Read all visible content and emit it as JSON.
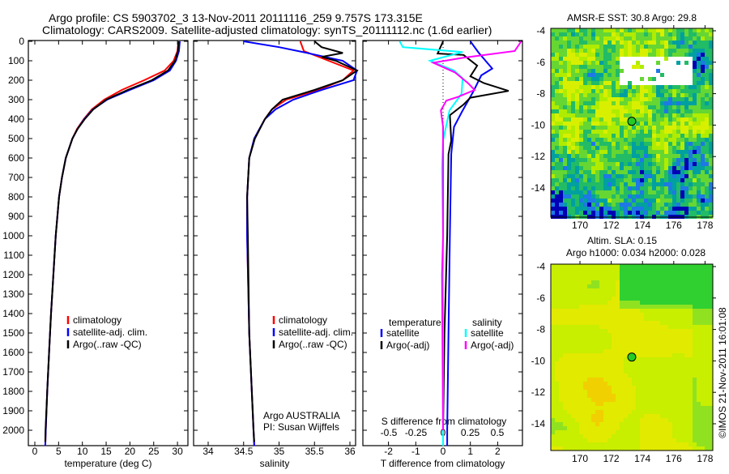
{
  "title": {
    "line1": "Argo profile: CS 5903702_3 13-Nov-2011 20111116_259 9.757S 173.315E",
    "line2": "Climatology: CARS2009. Satellite-adjusted climatology: synTS_20111112.nc (1.6d earlier)"
  },
  "colors": {
    "climatology": "#ff0000",
    "satellite": "#0000ff",
    "argo": "#000000",
    "s_satellite": "#00ffff",
    "s_argo": "#ff00ff"
  },
  "chart_data": [
    {
      "type": "line",
      "xlabel": "temperature (deg C)",
      "ylabel": "depth",
      "xlim": [
        -1.5,
        31.5
      ],
      "ylim": [
        2080,
        0
      ],
      "xticks": [
        "0",
        "5",
        "10",
        "15",
        "20",
        "25",
        "30"
      ],
      "yticks": [
        "0",
        "100",
        "200",
        "300",
        "400",
        "500",
        "600",
        "700",
        "800",
        "900",
        "1000",
        "1100",
        "1200",
        "1300",
        "1400",
        "1500",
        "1600",
        "1700",
        "1800",
        "1900",
        "2000"
      ],
      "legend": [
        "climatology",
        "satellite-adj. clim.",
        "Argo(..raw -QC)"
      ],
      "series": [
        {
          "name": "climatology",
          "color": "#ff0000",
          "points": [
            [
              0,
              30.2
            ],
            [
              50,
              30
            ],
            [
              100,
              29.2
            ],
            [
              150,
              27.3
            ],
            [
              200,
              23
            ],
            [
              250,
              18.3
            ],
            [
              300,
              14.6
            ],
            [
              350,
              12
            ],
            [
              400,
              10.3
            ],
            [
              450,
              8.9
            ],
            [
              500,
              7.9
            ],
            [
              600,
              6.5
            ],
            [
              700,
              5.7
            ],
            [
              800,
              5.1
            ],
            [
              1000,
              4.4
            ],
            [
              1200,
              3.9
            ],
            [
              1400,
              3.4
            ],
            [
              1600,
              3.0
            ],
            [
              1800,
              2.6
            ],
            [
              2000,
              2.3
            ],
            [
              2080,
              2.2
            ]
          ]
        },
        {
          "name": "satellite-adj. clim.",
          "color": "#0000ff",
          "points": [
            [
              0,
              30.5
            ],
            [
              50,
              30.3
            ],
            [
              100,
              29.7
            ],
            [
              150,
              28.4
            ],
            [
              200,
              25
            ],
            [
              250,
              20
            ],
            [
              300,
              15.2
            ],
            [
              350,
              12.2
            ],
            [
              400,
              10.4
            ],
            [
              450,
              9
            ],
            [
              500,
              7.9
            ],
            [
              600,
              6.5
            ],
            [
              700,
              5.7
            ],
            [
              800,
              5.1
            ],
            [
              1000,
              4.4
            ],
            [
              1200,
              3.9
            ],
            [
              1400,
              3.4
            ],
            [
              1600,
              3.0
            ],
            [
              1800,
              2.6
            ],
            [
              2000,
              2.3
            ],
            [
              2080,
              2.2
            ]
          ]
        },
        {
          "name": "Argo(..raw -QC)",
          "color": "#000000",
          "points": [
            [
              0,
              30.2
            ],
            [
              50,
              30.1
            ],
            [
              100,
              29.5
            ],
            [
              150,
              28
            ],
            [
              200,
              24.6
            ],
            [
              250,
              19.5
            ],
            [
              300,
              15
            ],
            [
              350,
              12.3
            ],
            [
              400,
              10.5
            ],
            [
              450,
              9
            ],
            [
              500,
              7.9
            ],
            [
              600,
              6.5
            ],
            [
              700,
              5.7
            ],
            [
              800,
              5.1
            ],
            [
              1000,
              4.4
            ],
            [
              1200,
              3.9
            ],
            [
              1400,
              3.4
            ],
            [
              1600,
              3.0
            ],
            [
              1800,
              2.6
            ],
            [
              2000,
              2.25
            ],
            [
              2060,
              2.2
            ]
          ]
        }
      ]
    },
    {
      "type": "line",
      "xlabel": "salinity",
      "xlim": [
        33.8,
        36.1
      ],
      "ylim": [
        2080,
        0
      ],
      "xticks": [
        "34",
        "34.5",
        "35",
        "35.5",
        "36"
      ],
      "legend": [
        "climatology",
        "satellite-adj. clim.",
        "Argo(..raw -QC)"
      ],
      "annotation": [
        "Argo AUSTRALIA",
        "PI: Susan Wijffels"
      ],
      "series": [
        {
          "name": "climatology",
          "color": "#ff0000",
          "points": [
            [
              0,
              35.3
            ],
            [
              50,
              35.35
            ],
            [
              100,
              35.7
            ],
            [
              150,
              36.05
            ],
            [
              200,
              35.9
            ],
            [
              250,
              35.55
            ],
            [
              300,
              35.1
            ],
            [
              350,
              34.9
            ],
            [
              400,
              34.8
            ],
            [
              500,
              34.65
            ],
            [
              600,
              34.58
            ],
            [
              800,
              34.55
            ],
            [
              1000,
              34.55
            ],
            [
              1500,
              34.58
            ],
            [
              2000,
              34.64
            ],
            [
              2080,
              34.65
            ]
          ]
        },
        {
          "name": "satellite-adj. clim.",
          "color": "#0000ff",
          "points": [
            [
              0,
              34.5
            ],
            [
              30,
              35.0
            ],
            [
              60,
              35.4
            ],
            [
              100,
              35.9
            ],
            [
              150,
              36.1
            ],
            [
              200,
              36.05
            ],
            [
              250,
              35.6
            ],
            [
              300,
              35.2
            ],
            [
              350,
              34.95
            ],
            [
              400,
              34.8
            ],
            [
              500,
              34.65
            ],
            [
              600,
              34.58
            ],
            [
              800,
              34.55
            ],
            [
              1000,
              34.55
            ],
            [
              1500,
              34.58
            ],
            [
              2000,
              34.64
            ],
            [
              2080,
              34.65
            ]
          ]
        },
        {
          "name": "Argo(..raw -QC)",
          "color": "#000000",
          "points": [
            [
              0,
              35.5
            ],
            [
              30,
              35.6
            ],
            [
              60,
              35.9
            ],
            [
              80,
              35.6
            ],
            [
              100,
              35.8
            ],
            [
              150,
              36.1
            ],
            [
              200,
              35.9
            ],
            [
              250,
              35.5
            ],
            [
              300,
              35.05
            ],
            [
              350,
              34.9
            ],
            [
              400,
              34.8
            ],
            [
              500,
              34.66
            ],
            [
              600,
              34.58
            ],
            [
              800,
              34.55
            ],
            [
              1000,
              34.56
            ],
            [
              1500,
              34.58
            ],
            [
              2000,
              34.64
            ],
            [
              2060,
              34.65
            ]
          ]
        }
      ]
    },
    {
      "type": "line",
      "xlabel": "T difference from climatology",
      "x2label": "S difference from climatology",
      "xlim": [
        -3,
        2.9
      ],
      "ylim": [
        2080,
        0
      ],
      "xticks": [
        "-2",
        "-1",
        "0",
        "1",
        "2"
      ],
      "x2ticks": [
        "-0.5",
        "-0.25",
        "0",
        "0.25",
        "0.5"
      ],
      "legend_headers": [
        "temperature",
        "salinity"
      ],
      "legend": [
        "satellite",
        "Argo(-adj)",
        "satellite",
        "Argo(-adj)"
      ],
      "series": [
        {
          "name": "T satellite",
          "color": "#0000ff",
          "axis": "T",
          "points": [
            [
              0,
              1.0
            ],
            [
              58,
              1.3
            ],
            [
              140,
              1.8
            ],
            [
              175,
              1.4
            ],
            [
              260,
              1.1
            ],
            [
              360,
              0.7
            ],
            [
              440,
              0.4
            ],
            [
              580,
              0.3
            ],
            [
              1000,
              0.25
            ],
            [
              1500,
              0.2
            ],
            [
              2000,
              0.15
            ],
            [
              2080,
              0.15
            ]
          ]
        },
        {
          "name": "T Argo(-adj)",
          "color": "#000000",
          "axis": "T",
          "points": [
            [
              0,
              0
            ],
            [
              63,
              -0.2
            ],
            [
              70,
              0.75
            ],
            [
              125,
              1.25
            ],
            [
              180,
              1.0
            ],
            [
              215,
              1.5
            ],
            [
              255,
              2.4
            ],
            [
              290,
              1.0
            ],
            [
              325,
              0.75
            ],
            [
              380,
              0.25
            ],
            [
              510,
              0.3
            ],
            [
              580,
              0.2
            ],
            [
              1000,
              0.15
            ],
            [
              1500,
              0.05
            ],
            [
              2000,
              0
            ],
            [
              2080,
              0
            ]
          ]
        },
        {
          "name": "S satellite",
          "color": "#00ffff",
          "axis": "S",
          "points": [
            [
              0,
              -0.4
            ],
            [
              30,
              -0.37
            ],
            [
              55,
              0.18
            ],
            [
              100,
              -0.12
            ],
            [
              150,
              0.1
            ],
            [
              190,
              0.18
            ],
            [
              270,
              0.17
            ],
            [
              355,
              0.06
            ],
            [
              510,
              0
            ],
            [
              650,
              -0.01
            ],
            [
              1000,
              0
            ],
            [
              2000,
              0
            ],
            [
              2080,
              0
            ]
          ]
        },
        {
          "name": "S Argo(-adj)",
          "color": "#ff00ff",
          "axis": "S",
          "points": [
            [
              0,
              0.72
            ],
            [
              50,
              0.66
            ],
            [
              85,
              0.18
            ],
            [
              110,
              -0.09
            ],
            [
              160,
              0.11
            ],
            [
              215,
              0.23
            ],
            [
              250,
              0.29
            ],
            [
              285,
              0.14
            ],
            [
              305,
              0.03
            ],
            [
              355,
              -0.02
            ],
            [
              440,
              0
            ],
            [
              1000,
              0
            ],
            [
              1200,
              -0.01
            ],
            [
              2000,
              0
            ]
          ]
        }
      ]
    },
    {
      "type": "heatmap",
      "title": "AMSR-E SST: 30.8 Argo: 29.8",
      "xlim": [
        168.2,
        178.4
      ],
      "ylim": [
        -15.6,
        -3.8
      ],
      "xticks": [
        "170",
        "172",
        "174",
        "176",
        "178"
      ],
      "yticks": [
        "-4",
        "-6",
        "-8",
        "-10",
        "-12",
        "-14"
      ],
      "marker": [
        173.315,
        -9.757
      ]
    },
    {
      "type": "heatmap",
      "title": "Altim. SLA: 0.15",
      "subtitle": "Argo h1000: 0.034 h2000: 0.028",
      "xlim": [
        168.2,
        178.4
      ],
      "ylim": [
        -15.6,
        -3.8
      ],
      "xticks": [
        "170",
        "172",
        "174",
        "176",
        "178"
      ],
      "yticks": [
        "-4",
        "-6",
        "-8",
        "-10",
        "-12",
        "-14"
      ],
      "marker": [
        173.315,
        -9.757
      ]
    }
  ],
  "credit": "©IMOS 21-Nov-2011 16:01:08"
}
